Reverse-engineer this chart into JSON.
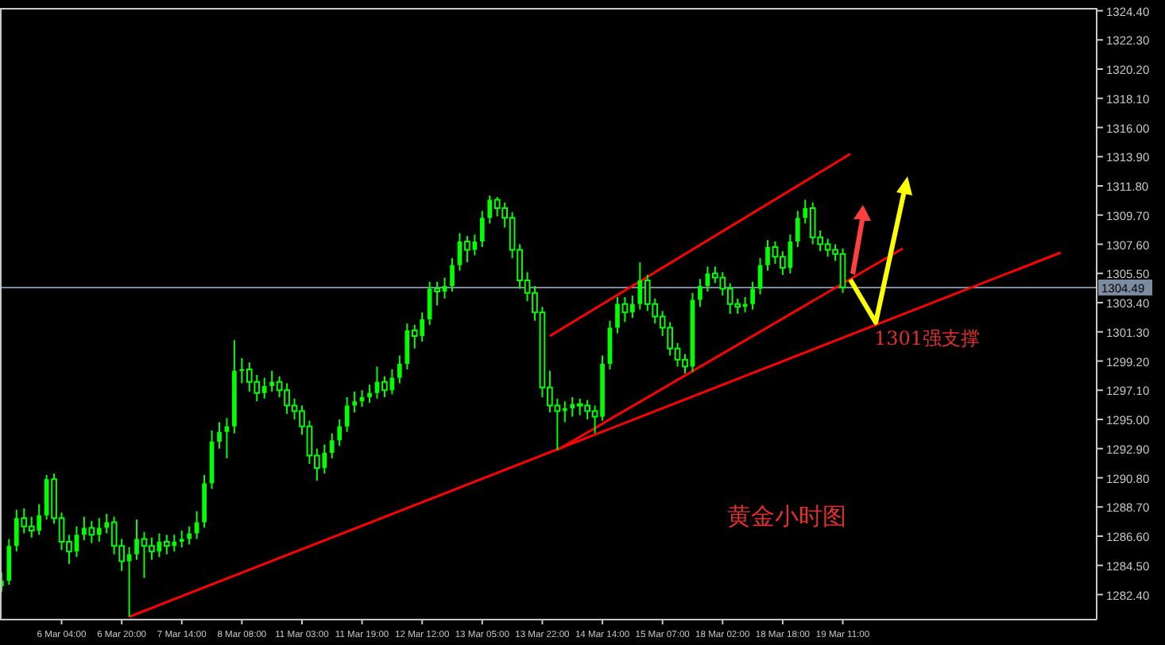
{
  "chart_data": {
    "type": "candlestick",
    "color": "#00ff00",
    "categories": [
      null,
      null,
      null,
      null,
      null,
      null,
      null,
      null,
      "6 Mar 04:00",
      null,
      null,
      null,
      null,
      null,
      null,
      null,
      "6 Mar 20:00",
      null,
      null,
      null,
      null,
      null,
      null,
      null,
      "7 Mar 14:00",
      null,
      null,
      null,
      null,
      null,
      null,
      null,
      "8 Mar 08:00",
      null,
      null,
      null,
      null,
      null,
      null,
      null,
      "11 Mar 03:00",
      null,
      null,
      null,
      null,
      null,
      null,
      null,
      "11 Mar 19:00",
      null,
      null,
      null,
      null,
      null,
      null,
      null,
      "12 Mar 12:00",
      null,
      null,
      null,
      null,
      null,
      null,
      null,
      "13 Mar 05:00",
      null,
      null,
      null,
      null,
      null,
      null,
      null,
      "13 Mar 22:00",
      null,
      null,
      null,
      null,
      null,
      null,
      null,
      "14 Mar 14:00",
      null,
      null,
      null,
      null,
      null,
      null,
      null,
      "15 Mar 07:00",
      null,
      null,
      null,
      null,
      null,
      null,
      null,
      "18 Mar 02:00",
      null,
      null,
      null,
      null,
      null,
      null,
      null,
      "18 Mar 18:00",
      null,
      null,
      null,
      null,
      null,
      null,
      null,
      "19 Mar 11:00",
      null,
      null,
      null,
      null,
      null,
      null,
      null,
      null,
      null,
      null,
      null,
      null,
      null,
      null,
      null,
      null,
      null,
      null,
      null,
      null,
      null,
      null,
      null,
      null,
      null,
      null,
      null,
      null,
      null,
      null,
      null,
      null,
      null
    ],
    "ohlc": [
      [
        1283.0,
        1284.0,
        1282.6,
        1283.4
      ],
      [
        1283.4,
        1286.4,
        1283.1,
        1285.9
      ],
      [
        1285.9,
        1288.5,
        1285.5,
        1287.9
      ],
      [
        1287.9,
        1288.6,
        1286.8,
        1287.3
      ],
      [
        1287.3,
        1288.0,
        1286.5,
        1287.0
      ],
      [
        1287.0,
        1288.9,
        1286.7,
        1288.1
      ],
      [
        1288.1,
        1291.0,
        1287.8,
        1290.7
      ],
      [
        1290.7,
        1291.1,
        1287.5,
        1287.9
      ],
      [
        1287.9,
        1288.3,
        1285.6,
        1286.2
      ],
      [
        1286.2,
        1286.7,
        1284.6,
        1285.5
      ],
      [
        1285.5,
        1287.3,
        1285.1,
        1286.7
      ],
      [
        1286.7,
        1288.0,
        1286.3,
        1287.2
      ],
      [
        1287.2,
        1287.7,
        1286.1,
        1286.7
      ],
      [
        1286.7,
        1287.9,
        1286.2,
        1287.2
      ],
      [
        1287.2,
        1288.2,
        1286.8,
        1287.6
      ],
      [
        1287.6,
        1288.0,
        1285.3,
        1285.9
      ],
      [
        1285.9,
        1286.4,
        1284.1,
        1284.8
      ],
      [
        1284.8,
        1285.8,
        1280.8,
        1285.3
      ],
      [
        1285.3,
        1287.8,
        1284.9,
        1286.4
      ],
      [
        1286.4,
        1286.9,
        1283.6,
        1285.9
      ],
      [
        1285.9,
        1286.5,
        1284.9,
        1285.5
      ],
      [
        1285.5,
        1286.8,
        1285.1,
        1286.2
      ],
      [
        1286.2,
        1286.7,
        1285.3,
        1285.9
      ],
      [
        1285.9,
        1286.7,
        1285.5,
        1286.2
      ],
      [
        1286.2,
        1287.0,
        1285.8,
        1286.4
      ],
      [
        1286.4,
        1287.3,
        1286.0,
        1286.8
      ],
      [
        1286.8,
        1288.4,
        1286.4,
        1287.6
      ],
      [
        1287.6,
        1291.0,
        1287.2,
        1290.4
      ],
      [
        1290.4,
        1294.2,
        1290.0,
        1293.4
      ],
      [
        1293.4,
        1294.8,
        1292.9,
        1294.1
      ],
      [
        1294.1,
        1295.1,
        1292.2,
        1294.5
      ],
      [
        1294.5,
        1300.7,
        1294.0,
        1298.5
      ],
      [
        1298.5,
        1299.4,
        1297.6,
        1298.6
      ],
      [
        1298.6,
        1299.1,
        1297.0,
        1297.7
      ],
      [
        1297.7,
        1298.2,
        1296.3,
        1296.9
      ],
      [
        1296.9,
        1298.0,
        1296.5,
        1297.4
      ],
      [
        1297.4,
        1298.5,
        1297.0,
        1297.7
      ],
      [
        1297.7,
        1298.1,
        1296.6,
        1297.1
      ],
      [
        1297.1,
        1297.6,
        1295.4,
        1296.0
      ],
      [
        1296.0,
        1296.5,
        1295.0,
        1295.6
      ],
      [
        1295.6,
        1296.0,
        1293.9,
        1294.5
      ],
      [
        1294.5,
        1294.9,
        1291.8,
        1292.4
      ],
      [
        1292.4,
        1292.9,
        1290.6,
        1291.5
      ],
      [
        1291.5,
        1293.2,
        1291.1,
        1292.6
      ],
      [
        1292.6,
        1294.0,
        1292.2,
        1293.5
      ],
      [
        1293.5,
        1295.0,
        1293.1,
        1294.5
      ],
      [
        1294.5,
        1296.6,
        1294.1,
        1296.0
      ],
      [
        1296.0,
        1297.0,
        1295.5,
        1296.3
      ],
      [
        1296.3,
        1297.1,
        1295.9,
        1296.6
      ],
      [
        1296.6,
        1297.5,
        1296.2,
        1296.9
      ],
      [
        1296.9,
        1298.8,
        1296.5,
        1297.7
      ],
      [
        1297.7,
        1298.1,
        1296.6,
        1297.1
      ],
      [
        1297.1,
        1298.6,
        1296.8,
        1298.0
      ],
      [
        1298.0,
        1299.6,
        1297.6,
        1299.0
      ],
      [
        1299.0,
        1301.9,
        1298.6,
        1301.4
      ],
      [
        1301.4,
        1301.8,
        1300.1,
        1301.0
      ],
      [
        1301.0,
        1302.7,
        1300.6,
        1302.2
      ],
      [
        1302.2,
        1304.9,
        1301.8,
        1304.4
      ],
      [
        1304.4,
        1304.9,
        1303.2,
        1304.2
      ],
      [
        1304.2,
        1305.2,
        1303.7,
        1304.6
      ],
      [
        1304.6,
        1306.6,
        1304.2,
        1306.1
      ],
      [
        1306.1,
        1308.4,
        1305.7,
        1307.8
      ],
      [
        1307.8,
        1308.2,
        1306.3,
        1307.2
      ],
      [
        1307.2,
        1308.3,
        1306.8,
        1307.8
      ],
      [
        1307.8,
        1310.0,
        1307.4,
        1309.5
      ],
      [
        1309.5,
        1311.1,
        1309.1,
        1310.8
      ],
      [
        1310.8,
        1311.0,
        1309.6,
        1310.2
      ],
      [
        1310.2,
        1310.6,
        1308.8,
        1309.5
      ],
      [
        1309.5,
        1309.9,
        1306.6,
        1307.2
      ],
      [
        1307.2,
        1307.6,
        1304.4,
        1305.0
      ],
      [
        1305.0,
        1305.6,
        1303.5,
        1304.1
      ],
      [
        1304.1,
        1304.6,
        1302.1,
        1302.7
      ],
      [
        1302.7,
        1303.1,
        1296.6,
        1297.3
      ],
      [
        1297.3,
        1298.5,
        1295.5,
        1296.0
      ],
      [
        1296.0,
        1296.5,
        1292.8,
        1295.6
      ],
      [
        1295.6,
        1296.3,
        1294.8,
        1295.8
      ],
      [
        1295.8,
        1296.6,
        1295.2,
        1296.1
      ],
      [
        1296.1,
        1296.5,
        1295.3,
        1296.0
      ],
      [
        1296.0,
        1296.4,
        1295.0,
        1295.6
      ],
      [
        1295.6,
        1296.0,
        1294.0,
        1295.2
      ],
      [
        1295.2,
        1299.6,
        1294.9,
        1299.0
      ],
      [
        1299.0,
        1302.1,
        1298.6,
        1301.6
      ],
      [
        1301.6,
        1303.8,
        1301.2,
        1303.3
      ],
      [
        1303.3,
        1303.8,
        1302.0,
        1302.7
      ],
      [
        1302.7,
        1303.9,
        1302.3,
        1303.3
      ],
      [
        1303.3,
        1306.3,
        1302.9,
        1305.0
      ],
      [
        1305.0,
        1305.4,
        1302.8,
        1303.3
      ],
      [
        1303.3,
        1303.7,
        1301.9,
        1302.4
      ],
      [
        1302.4,
        1302.8,
        1301.0,
        1301.6
      ],
      [
        1301.6,
        1302.0,
        1299.6,
        1300.1
      ],
      [
        1300.1,
        1300.5,
        1298.8,
        1299.3
      ],
      [
        1299.3,
        1299.7,
        1298.3,
        1298.8
      ],
      [
        1298.8,
        1304.1,
        1298.4,
        1303.6
      ],
      [
        1303.6,
        1305.1,
        1303.1,
        1304.6
      ],
      [
        1304.6,
        1306.0,
        1304.2,
        1305.5
      ],
      [
        1305.5,
        1306.0,
        1304.8,
        1305.2
      ],
      [
        1305.2,
        1305.6,
        1303.9,
        1304.4
      ],
      [
        1304.4,
        1304.8,
        1302.6,
        1303.3
      ],
      [
        1303.3,
        1303.7,
        1302.6,
        1303.1
      ],
      [
        1303.1,
        1303.8,
        1302.7,
        1303.3
      ],
      [
        1303.3,
        1304.9,
        1302.9,
        1304.4
      ],
      [
        1304.4,
        1306.6,
        1304.0,
        1306.1
      ],
      [
        1306.1,
        1307.9,
        1305.7,
        1307.4
      ],
      [
        1307.4,
        1307.8,
        1306.2,
        1306.7
      ],
      [
        1306.7,
        1307.1,
        1305.4,
        1305.9
      ],
      [
        1305.9,
        1308.3,
        1305.5,
        1307.8
      ],
      [
        1307.8,
        1310.0,
        1307.4,
        1309.5
      ],
      [
        1309.5,
        1310.8,
        1309.1,
        1310.2
      ],
      [
        1310.2,
        1310.6,
        1307.6,
        1308.1
      ],
      [
        1308.1,
        1308.6,
        1307.1,
        1307.6
      ],
      [
        1307.6,
        1308.0,
        1306.7,
        1307.2
      ],
      [
        1307.2,
        1307.6,
        1306.4,
        1306.9
      ],
      [
        1306.9,
        1307.3,
        1304.1,
        1304.5
      ],
      null,
      null,
      null,
      null,
      null,
      null,
      null,
      null,
      null,
      null,
      null,
      null,
      null,
      null,
      null,
      null,
      null,
      null,
      null,
      null,
      null,
      null,
      null,
      null,
      null,
      null,
      null,
      null,
      null,
      null,
      null,
      null,
      null
    ],
    "series": [
      {
        "type": "line",
        "color": "#ff0000",
        "values": [
          null,
          null,
          null,
          null,
          null,
          null,
          null,
          null,
          null,
          null,
          null,
          null,
          null,
          null,
          null,
          null,
          null,
          1280.8,
          null,
          null,
          null,
          null,
          null,
          null,
          null,
          null,
          null,
          null,
          null,
          null,
          null,
          null,
          null,
          null,
          null,
          null,
          null,
          null,
          null,
          null,
          null,
          null,
          null,
          null,
          null,
          null,
          null,
          null,
          null,
          null,
          null,
          null,
          null,
          null,
          null,
          null,
          null,
          null,
          null,
          null,
          null,
          null,
          null,
          null,
          null,
          null,
          null,
          null,
          null,
          null,
          null,
          null,
          null,
          null,
          null,
          null,
          null,
          null,
          null,
          null,
          null,
          null,
          null,
          null,
          null,
          null,
          null,
          null,
          null,
          null,
          null,
          null,
          null,
          null,
          null,
          null,
          null,
          null,
          null,
          null,
          null,
          null,
          null,
          null,
          null,
          null,
          null,
          null,
          null,
          null,
          null,
          null,
          null,
          null,
          null,
          null,
          null,
          null,
          null,
          null,
          null,
          null,
          null,
          null,
          null,
          null,
          null,
          null,
          null,
          null,
          null,
          null,
          null,
          null,
          null,
          null,
          null,
          null,
          null,
          null,
          null,
          1307.0,
          null,
          null,
          null,
          null
        ]
      },
      {
        "type": "line",
        "color": "#ff0000",
        "values": [
          null,
          null,
          null,
          null,
          null,
          null,
          null,
          null,
          null,
          null,
          null,
          null,
          null,
          null,
          null,
          null,
          null,
          null,
          null,
          null,
          null,
          null,
          null,
          null,
          null,
          null,
          null,
          null,
          null,
          null,
          null,
          null,
          null,
          null,
          null,
          null,
          null,
          null,
          null,
          null,
          null,
          null,
          null,
          null,
          null,
          null,
          null,
          null,
          null,
          null,
          null,
          null,
          null,
          null,
          null,
          null,
          null,
          null,
          null,
          null,
          null,
          null,
          null,
          null,
          null,
          null,
          null,
          null,
          null,
          null,
          null,
          null,
          null,
          1301.0,
          null,
          null,
          null,
          null,
          null,
          null,
          null,
          null,
          null,
          null,
          null,
          null,
          null,
          null,
          null,
          null,
          null,
          null,
          null,
          null,
          null,
          null,
          null,
          null,
          null,
          null,
          null,
          null,
          null,
          null,
          null,
          null,
          null,
          null,
          null,
          null,
          null,
          null,
          null,
          1314.1,
          null,
          null,
          null,
          null,
          null,
          null,
          null,
          null,
          null,
          null,
          null,
          null,
          null,
          null,
          null,
          null,
          null,
          null,
          null,
          null,
          null,
          null,
          null,
          null,
          null,
          null,
          null,
          null,
          null,
          null,
          null,
          null
        ]
      },
      {
        "type": "line",
        "color": "#ff0000",
        "values": [
          null,
          null,
          null,
          null,
          null,
          null,
          null,
          null,
          null,
          null,
          null,
          null,
          null,
          null,
          null,
          null,
          null,
          null,
          null,
          null,
          null,
          null,
          null,
          null,
          null,
          null,
          null,
          null,
          null,
          null,
          null,
          null,
          null,
          null,
          null,
          null,
          null,
          null,
          null,
          null,
          null,
          null,
          null,
          null,
          null,
          null,
          null,
          null,
          null,
          null,
          null,
          null,
          null,
          null,
          null,
          null,
          null,
          null,
          null,
          null,
          null,
          null,
          null,
          null,
          null,
          null,
          null,
          null,
          null,
          null,
          null,
          null,
          null,
          null,
          1292.8,
          null,
          null,
          null,
          null,
          null,
          null,
          null,
          null,
          null,
          null,
          null,
          null,
          null,
          null,
          null,
          null,
          null,
          null,
          null,
          null,
          null,
          null,
          null,
          null,
          null,
          null,
          null,
          null,
          null,
          null,
          null,
          null,
          null,
          null,
          null,
          null,
          null,
          null,
          null,
          null,
          null,
          null,
          null,
          null,
          null,
          1307.3,
          null,
          null,
          null,
          null,
          null,
          null,
          null,
          null,
          null,
          null,
          null,
          null,
          null,
          null,
          null,
          null,
          null,
          null,
          null,
          null,
          null,
          null,
          null,
          null,
          null
        ]
      }
    ],
    "ylim": [
      1280.6,
      1324.6
    ],
    "yticks": [
      {
        "value": 1282.4,
        "label": "1282.40"
      },
      {
        "value": 1284.5,
        "label": "1284.50"
      },
      {
        "value": 1286.6,
        "label": "1286.60"
      },
      {
        "value": 1288.7,
        "label": "1288.70"
      },
      {
        "value": 1290.8,
        "label": "1290.80"
      },
      {
        "value": 1292.9,
        "label": "1292.90"
      },
      {
        "value": 1295.0,
        "label": "1295.00"
      },
      {
        "value": 1297.1,
        "label": "1297.10"
      },
      {
        "value": 1299.2,
        "label": "1299.20"
      },
      {
        "value": 1301.3,
        "label": "1301.30"
      },
      {
        "value": 1303.4,
        "label": "1303.40"
      },
      {
        "value": 1305.5,
        "label": "1305.50"
      },
      {
        "value": 1307.6,
        "label": "1307.60"
      },
      {
        "value": 1309.7,
        "label": "1309.70"
      },
      {
        "value": 1311.8,
        "label": "1311.80"
      },
      {
        "value": 1313.9,
        "label": "1313.90"
      },
      {
        "value": 1316.0,
        "label": "1316.00"
      },
      {
        "value": 1318.1,
        "label": "1318.10"
      },
      {
        "value": 1320.2,
        "label": "1320.20"
      },
      {
        "value": 1322.3,
        "label": "1322.30"
      },
      {
        "value": 1324.4,
        "label": "1324.40"
      }
    ],
    "ref_lines": [
      {
        "axis": "y",
        "value": 1304.49,
        "label": "1304.49",
        "color": "#7b8ba0"
      }
    ],
    "annotations": [
      "1301强支撑",
      "黄金小时图"
    ]
  }
}
